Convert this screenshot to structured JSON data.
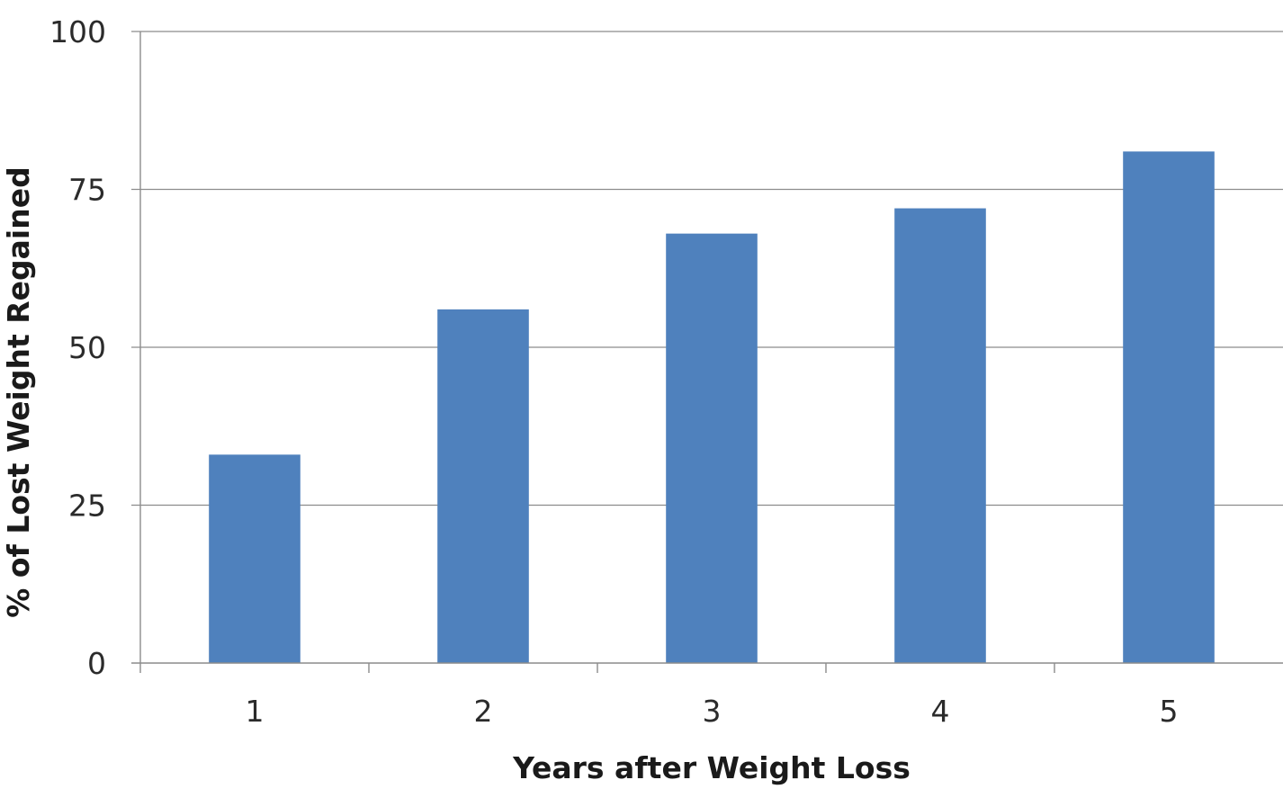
{
  "chart_data": {
    "type": "bar",
    "categories": [
      "1",
      "2",
      "3",
      "4",
      "5"
    ],
    "values": [
      33,
      56,
      68,
      72,
      81
    ],
    "xlabel": "Years after Weight Loss",
    "ylabel": "% of Lost Weight Regained",
    "ylim": [
      0,
      100
    ],
    "yticks": [
      0,
      25,
      50,
      75,
      100
    ],
    "grid": true,
    "bar_color": "#4f81bd"
  }
}
